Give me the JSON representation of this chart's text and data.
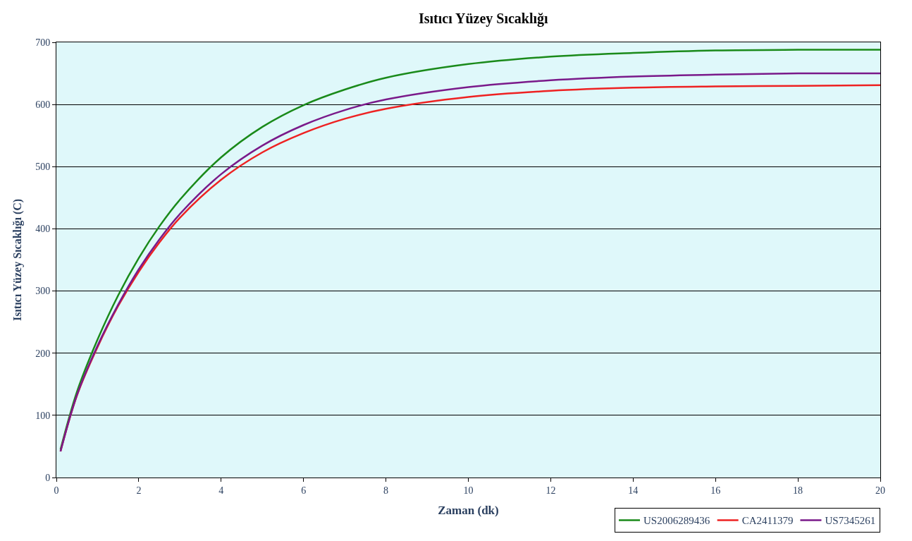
{
  "chart_data": {
    "type": "line",
    "title": "Isıtıcı Yüzey Sıcaklığı",
    "xlabel": "Zaman (dk)",
    "ylabel": "Isıtıcı Yüzey Sıcaklığı (C)",
    "x": [
      0.1,
      0.5,
      1,
      1.5,
      2,
      2.5,
      3,
      4,
      5,
      6,
      7,
      8,
      10,
      12,
      14,
      16,
      18,
      20
    ],
    "series": [
      {
        "name": "US2006289436",
        "color": "#1a8a1a",
        "values": [
          45,
          138,
          222,
          293,
          353,
          404,
          447,
          515,
          564,
          599,
          624,
          643,
          665,
          677,
          683,
          687,
          688,
          688
        ]
      },
      {
        "name": "CA2411379",
        "color": "#ee2222",
        "values": [
          42,
          132,
          210,
          276,
          331,
          378,
          418,
          479,
          523,
          554,
          577,
          593,
          612,
          622,
          627,
          629,
          630,
          631
        ]
      },
      {
        "name": "US7345261",
        "color": "#7a1a8a",
        "values": [
          42,
          133,
          212,
          278,
          335,
          383,
          424,
          488,
          534,
          567,
          591,
          608,
          628,
          639,
          645,
          648,
          650,
          650
        ]
      }
    ],
    "xlim": [
      0,
      20
    ],
    "xticks": [
      0,
      2,
      4,
      6,
      8,
      10,
      12,
      14,
      16,
      18,
      20
    ],
    "ylim": [
      0,
      700
    ],
    "yticks": [
      0,
      100,
      200,
      300,
      400,
      500,
      600,
      700
    ],
    "grid": "y",
    "legend": "bottom right",
    "marker": "none",
    "line_style": "solid"
  }
}
